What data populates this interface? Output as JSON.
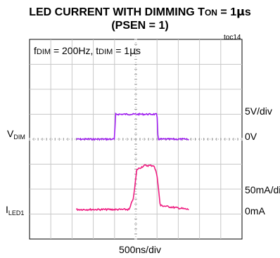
{
  "title": {
    "line1_main": "LED CURRENT WITH DIMMING T",
    "line1_sub": "ON",
    "line1_tail": " = 1",
    "line1_mu": "µ",
    "line1_unit": "s",
    "line2": "(PSEN = 1)"
  },
  "figure_id": "toc14",
  "annotation": {
    "f_prefix": "f",
    "f_sub": "DIM",
    "f_mid": " = 200Hz, t",
    "t_sub": "DIM",
    "t_tail": " = 1",
    "mu": "µ",
    "unit": "s"
  },
  "channels": {
    "vdim": {
      "main": "V",
      "sub": "DIM",
      "scale": "5V/div",
      "zero": "0V",
      "color": "#a020f0"
    },
    "iled": {
      "main": "I",
      "sub": "LED1",
      "scale": "50mA/div",
      "zero": "0mA",
      "color": "#ee1c80"
    }
  },
  "xlabel": "500ns/div",
  "chart_data": {
    "type": "line",
    "x_divisions": 10,
    "y_divisions": 8,
    "x_per_div": "500ns",
    "grid": true,
    "series": [
      {
        "name": "VDIM",
        "unit": "V",
        "x": [
          -2.8,
          -1.0,
          -0.95,
          1.0,
          1.05,
          2.5
        ],
        "y": [
          0,
          0,
          5,
          5,
          0,
          0
        ]
      },
      {
        "name": "ILED1",
        "unit": "mA",
        "x": [
          -2.8,
          -0.3,
          -0.1,
          0.05,
          0.4,
          0.85,
          1.0,
          1.15,
          2.5
        ],
        "y": [
          0,
          0,
          25,
          80,
          88,
          88,
          70,
          8,
          0
        ]
      }
    ]
  }
}
